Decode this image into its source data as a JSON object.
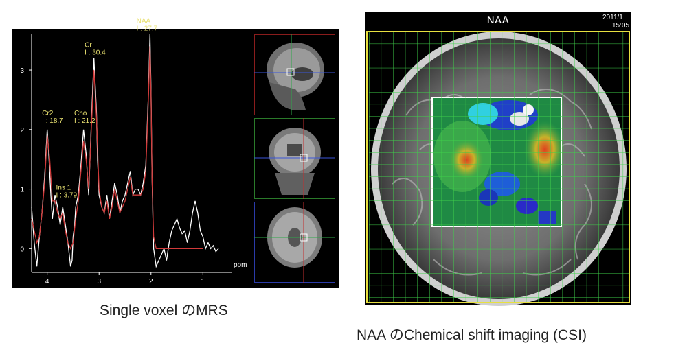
{
  "captions": {
    "left": "Single voxel のMRS",
    "right": "NAA のChemical shift imaging (CSI)"
  },
  "chart_data": {
    "type": "line",
    "xlabel": "ppm",
    "xlim": [
      4.3,
      0.7
    ],
    "ylim": [
      -0.4,
      3.6
    ],
    "x_ticks": [
      "4",
      "3",
      "2",
      "1"
    ],
    "y_ticks": [
      "0",
      "1",
      "2",
      "3"
    ],
    "series": [
      {
        "x": [
          4.3,
          4.25,
          4.2,
          4.15,
          4.1,
          4.05,
          4.0,
          3.97,
          3.93,
          3.9,
          3.85,
          3.8,
          3.75,
          3.7,
          3.65,
          3.6,
          3.55,
          3.52,
          3.5,
          3.47,
          3.45,
          3.4,
          3.35,
          3.3,
          3.25,
          3.2,
          3.15,
          3.1,
          3.05,
          3.03,
          3.0,
          2.95,
          2.9,
          2.85,
          2.8,
          2.75,
          2.7,
          2.65,
          2.6,
          2.55,
          2.5,
          2.45,
          2.4,
          2.35,
          2.3,
          2.25,
          2.2,
          2.15,
          2.1,
          2.05,
          2.02,
          2.0,
          1.98,
          1.95,
          1.9,
          1.85,
          1.8,
          1.75,
          1.7,
          1.65,
          1.6,
          1.55,
          1.5,
          1.45,
          1.4,
          1.35,
          1.3,
          1.25,
          1.2,
          1.15,
          1.1,
          1.05,
          1.0,
          0.95,
          0.9,
          0.85,
          0.8,
          0.75,
          0.7
        ],
        "values": [
          0.7,
          0.1,
          -0.3,
          0.2,
          0.6,
          1.2,
          2.0,
          1.6,
          0.9,
          0.5,
          0.9,
          0.7,
          0.4,
          0.7,
          0.4,
          0.1,
          -0.3,
          -0.2,
          0.2,
          0.4,
          0.7,
          0.9,
          1.4,
          2.0,
          1.6,
          0.9,
          2.1,
          3.2,
          2.3,
          1.5,
          0.9,
          0.7,
          0.6,
          0.9,
          0.5,
          0.8,
          1.1,
          0.9,
          0.6,
          0.8,
          0.9,
          1.1,
          1.3,
          0.9,
          1.0,
          1.0,
          0.9,
          1.1,
          1.4,
          2.6,
          3.6,
          2.7,
          1.2,
          0.0,
          -0.3,
          -0.2,
          -0.1,
          0.0,
          -0.2,
          0.1,
          0.3,
          0.4,
          0.5,
          0.35,
          0.25,
          0.3,
          0.1,
          0.3,
          0.6,
          0.8,
          0.6,
          0.3,
          0.2,
          0.0,
          0.1,
          0.0,
          0.05,
          -0.05,
          0.0
        ]
      },
      {
        "x": [
          4.3,
          4.2,
          4.15,
          4.1,
          4.05,
          4.0,
          3.95,
          3.9,
          3.85,
          3.8,
          3.75,
          3.7,
          3.65,
          3.6,
          3.55,
          3.5,
          3.45,
          3.4,
          3.35,
          3.3,
          3.25,
          3.2,
          3.15,
          3.1,
          3.05,
          3.0,
          2.95,
          2.9,
          2.85,
          2.8,
          2.75,
          2.7,
          2.65,
          2.6,
          2.55,
          2.5,
          2.45,
          2.4,
          2.35,
          2.3,
          2.25,
          2.2,
          2.15,
          2.1,
          2.05,
          2.02,
          2.0,
          1.98,
          1.95,
          1.9,
          1.8,
          1.6,
          1.4,
          1.2,
          1.0
        ],
        "values": [
          0.5,
          0.1,
          0.2,
          0.6,
          1.1,
          1.9,
          1.5,
          0.8,
          0.8,
          0.6,
          0.5,
          0.6,
          0.3,
          0.1,
          0.0,
          0.1,
          0.5,
          0.8,
          1.3,
          1.8,
          1.5,
          1.0,
          2.0,
          3.0,
          2.2,
          1.0,
          0.7,
          0.6,
          0.8,
          0.5,
          0.7,
          1.0,
          0.8,
          0.6,
          0.7,
          0.8,
          1.0,
          1.2,
          0.9,
          0.9,
          0.9,
          0.9,
          1.0,
          1.3,
          2.5,
          3.4,
          2.6,
          1.2,
          0.2,
          0.0,
          0.0,
          0.0,
          0.0,
          0.0,
          0.0
        ]
      }
    ],
    "annotations": [
      {
        "name": "Cr2",
        "value": "I : 18.7",
        "x": 4.02,
        "y": 2.1
      },
      {
        "name": "Ins 1",
        "value": "I : 3.79",
        "x": 3.75,
        "y": 0.85
      },
      {
        "name": "Cho",
        "value": "I : 21.2",
        "x": 3.4,
        "y": 2.1
      },
      {
        "name": "Cr",
        "value": "I : 30.4",
        "x": 3.2,
        "y": 3.25
      },
      {
        "name": "NAA",
        "value": "I : 27.7",
        "x": 2.2,
        "y": 3.65
      }
    ]
  },
  "csi": {
    "title": "NAA",
    "date": "2011/1",
    "time": "15:05"
  }
}
